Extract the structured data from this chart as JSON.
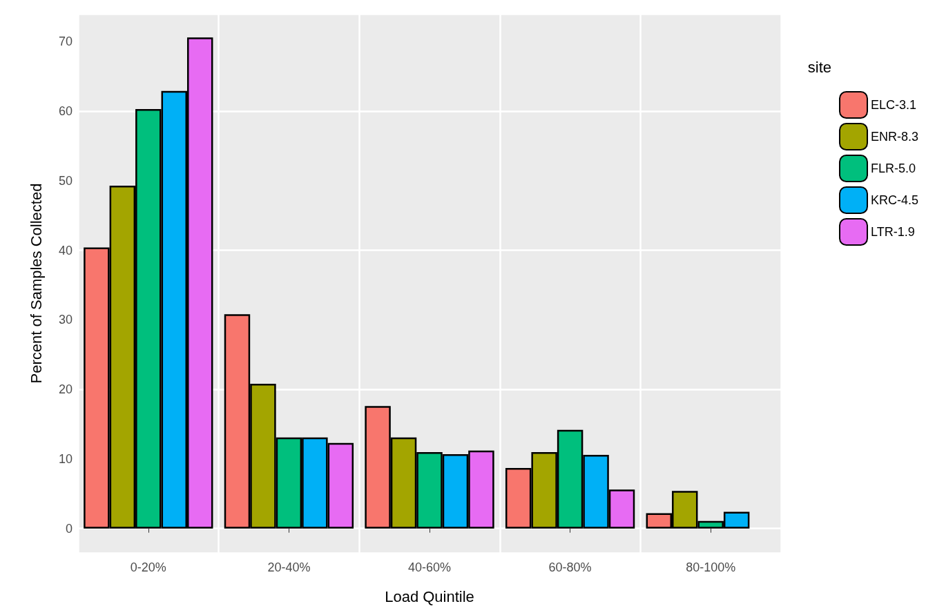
{
  "chart_data": {
    "type": "bar",
    "xlabel": "Load Quintile",
    "ylabel": "Percent of Samples Collected",
    "legend_title": "site",
    "legend": "right",
    "categories": [
      "0-20%",
      "20-40%",
      "40-60%",
      "60-80%",
      "80-100%"
    ],
    "ylim": [
      -3.5,
      74
    ],
    "yticks": [
      0,
      10,
      20,
      30,
      40,
      50,
      60,
      70
    ],
    "grid": true,
    "series": [
      {
        "name": "ELC-3.1",
        "color": "#f8766d",
        "values": [
          40.4,
          30.8,
          17.6,
          8.7,
          2.2
        ]
      },
      {
        "name": "ENR-8.3",
        "color": "#a3a500",
        "values": [
          49.3,
          20.8,
          13.1,
          11.0,
          5.4
        ]
      },
      {
        "name": "FLR-5.0",
        "color": "#00bf7d",
        "values": [
          60.3,
          13.1,
          11.0,
          14.2,
          1.1
        ]
      },
      {
        "name": "KRC-4.5",
        "color": "#00b0f6",
        "values": [
          62.9,
          13.1,
          10.7,
          10.6,
          2.4
        ]
      },
      {
        "name": "LTR-1.9",
        "color": "#e76bf3",
        "values": [
          70.6,
          12.3,
          11.2,
          5.6,
          null
        ]
      }
    ]
  }
}
